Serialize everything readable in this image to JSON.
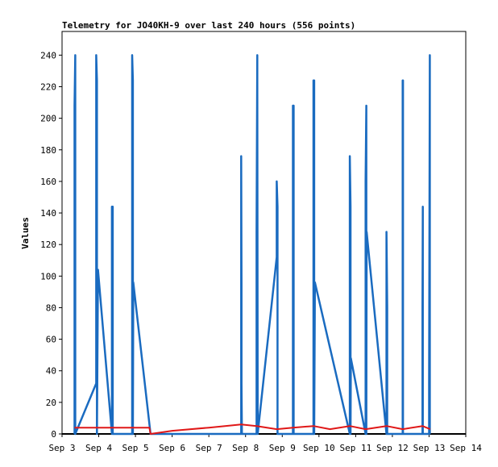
{
  "chart_data": {
    "type": "line",
    "title": "Telemetry for JO40KH-9 over last 240 hours (556 points)",
    "xlabel": "",
    "ylabel": "Values",
    "xlim": [
      3,
      14
    ],
    "ylim": [
      0,
      255
    ],
    "x_tick_values": [
      3,
      4,
      5,
      6,
      7,
      8,
      9,
      10,
      11,
      12,
      13,
      14
    ],
    "x_tick_labels": [
      "Sep 3",
      "Sep 4",
      "Sep 5",
      "Sep 6",
      "Sep 7",
      "Sep 8",
      "Sep 9",
      "Sep 10",
      "Sep 11",
      "Sep 12",
      "Sep 13",
      "Sep 14"
    ],
    "y_ticks": [
      0,
      20,
      40,
      60,
      80,
      100,
      120,
      140,
      160,
      180,
      200,
      220,
      240
    ],
    "grid": false,
    "legend": "none",
    "colors": {
      "blue": "#1a6bc0",
      "red": "#e01818"
    },
    "series": [
      {
        "color": "#1a6bc0",
        "x": [
          3.34,
          3.34,
          3.36,
          3.36,
          3.36,
          3.93,
          3.93,
          3.95,
          3.95,
          3.98,
          4.36,
          4.36,
          4.38,
          4.38,
          4.38,
          4.91,
          4.91,
          4.93,
          4.93,
          4.94,
          5.41,
          5.41,
          7.88,
          7.88,
          7.89,
          7.89,
          7.9,
          8.3,
          8.3,
          8.32,
          8.32,
          8.33,
          8.85,
          8.85,
          8.87,
          8.87,
          8.88,
          9.29,
          9.29,
          9.31,
          9.31,
          9.85,
          9.85,
          9.87,
          9.87,
          9.89,
          10.84,
          10.84,
          10.86,
          10.86,
          10.87,
          11.27,
          11.27,
          11.29,
          11.29,
          11.3,
          11.84,
          11.84,
          11.86,
          11.86,
          12.28,
          12.28,
          12.29,
          12.29,
          12.82,
          12.82,
          12.83,
          12.83,
          13.0,
          13.0,
          13.02,
          13.02,
          13.03
        ],
        "y": [
          0,
          208,
          240,
          0,
          0,
          32,
          240,
          224,
          0,
          104,
          0,
          144,
          144,
          0,
          0,
          0,
          240,
          224,
          0,
          96,
          0,
          0,
          0,
          176,
          96,
          32,
          0,
          0,
          128,
          240,
          224,
          0,
          112,
          160,
          144,
          0,
          0,
          0,
          208,
          208,
          0,
          0,
          224,
          224,
          0,
          96,
          0,
          176,
          144,
          0,
          48,
          0,
          160,
          208,
          0,
          128,
          0,
          128,
          80,
          0,
          0,
          224,
          224,
          0,
          0,
          80,
          144,
          0,
          0,
          32,
          240,
          0,
          0
        ]
      },
      {
        "color": "#e01818",
        "x": [
          3.34,
          3.5,
          4.0,
          4.5,
          5.0,
          5.38,
          5.41,
          6.0,
          7.0,
          7.88,
          8.3,
          8.85,
          9.29,
          9.85,
          10.3,
          10.84,
          11.27,
          11.84,
          12.28,
          12.82,
          13.03
        ],
        "y": [
          4,
          4,
          4,
          4,
          4,
          4,
          0,
          2,
          4,
          6,
          5,
          3,
          4,
          5,
          3,
          5,
          3,
          5,
          3,
          5,
          3
        ]
      }
    ]
  }
}
